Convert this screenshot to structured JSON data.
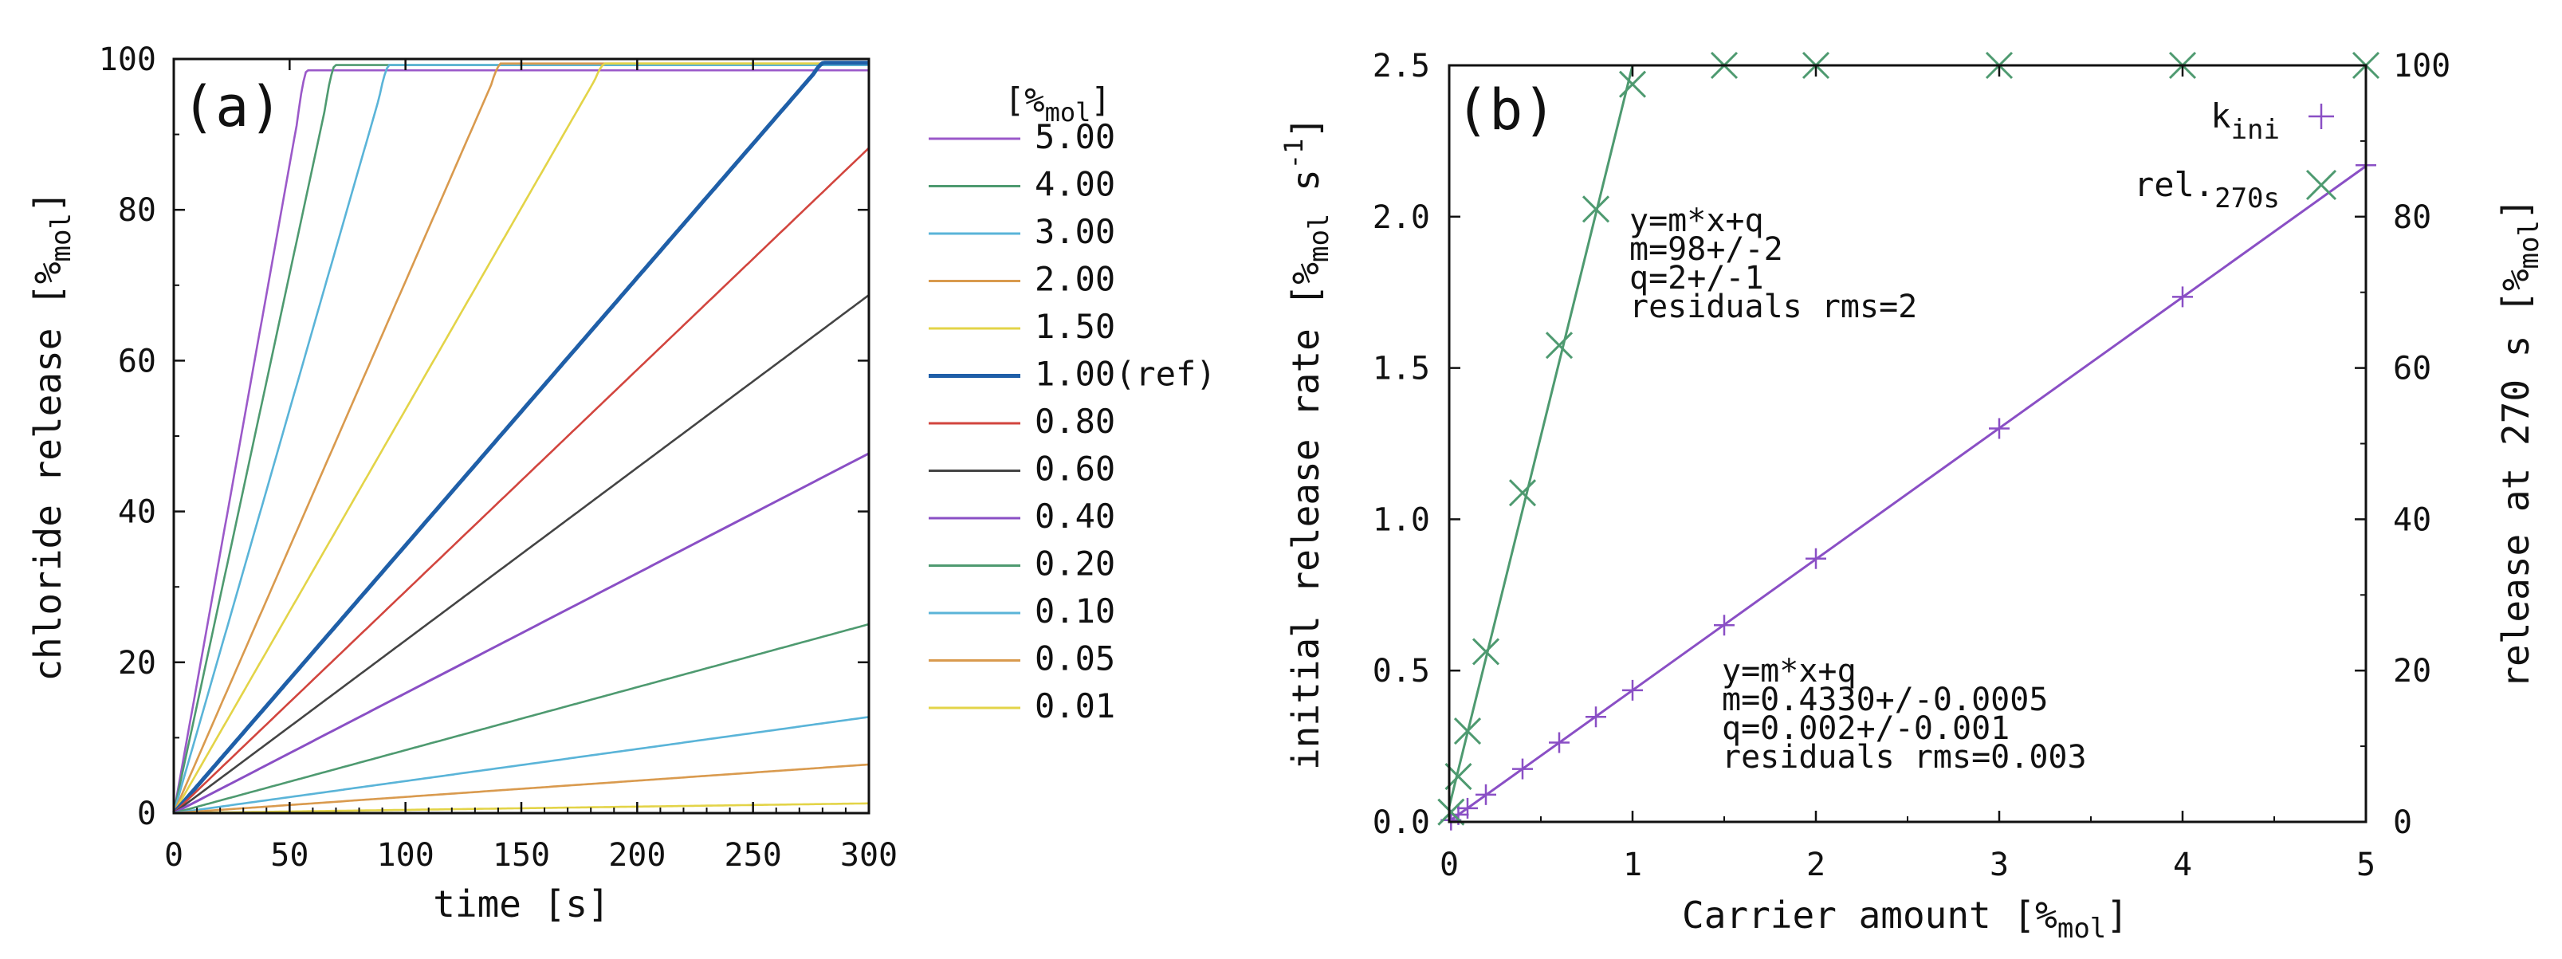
{
  "chart_data": [
    {
      "type": "line",
      "panel_label": "(a)",
      "xlabel": "time [s]",
      "ylabel": "chloride release [%mol]",
      "xlim": [
        0,
        300
      ],
      "ylim": [
        0,
        100
      ],
      "x_ticks": [
        0,
        50,
        100,
        150,
        200,
        250,
        300
      ],
      "y_ticks": [
        0,
        20,
        40,
        60,
        80,
        100
      ],
      "legend_title": "[%mol]",
      "legend_position": "outside-right",
      "series": [
        {
          "name": "5.00",
          "slope": 1.72,
          "plateau": 98.5,
          "color": "#9b59c9",
          "width": 2.6
        },
        {
          "name": "4.00",
          "slope": 1.43,
          "plateau": 99.2,
          "color": "#4e9a70",
          "width": 2.6
        },
        {
          "name": "3.00",
          "slope": 1.07,
          "plateau": 99.2,
          "color": "#5ab4d8",
          "width": 2.6
        },
        {
          "name": "2.00",
          "slope": 0.705,
          "plateau": 99.4,
          "color": "#d99a4e",
          "width": 2.6
        },
        {
          "name": "1.50",
          "slope": 0.535,
          "plateau": 99.4,
          "color": "#e3d448",
          "width": 2.6
        },
        {
          "name": "1.00(ref)",
          "slope": 0.355,
          "plateau": 99.5,
          "color": "#1f5fa8",
          "width": 5
        },
        {
          "name": "0.80",
          "slope": 0.294,
          "plateau": 100,
          "color": "#d2453e",
          "width": 2.6
        },
        {
          "name": "0.60",
          "slope": 0.229,
          "plateau": 100,
          "color": "#444444",
          "width": 2.6
        },
        {
          "name": "0.40",
          "slope": 0.159,
          "plateau": 100,
          "color": "#8a4fc5",
          "width": 3
        },
        {
          "name": "0.20",
          "slope": 0.0835,
          "plateau": 100,
          "color": "#4e9a70",
          "width": 2.6
        },
        {
          "name": "0.10",
          "slope": 0.0425,
          "plateau": 100,
          "color": "#5ab4d8",
          "width": 2.6
        },
        {
          "name": "0.05",
          "slope": 0.0215,
          "plateau": 100,
          "color": "#d99a4e",
          "width": 2.6
        },
        {
          "name": "0.01",
          "slope": 0.0043,
          "plateau": 100,
          "color": "#e3d448",
          "width": 2.6
        }
      ]
    },
    {
      "type": "scatter",
      "panel_label": "(b)",
      "xlabel": "Carrier amount [%mol]",
      "ylabel": "initial release rate [%mol s-1]",
      "y2label": "release at 270 s [%mol]",
      "xlim": [
        0,
        5
      ],
      "ylim": [
        0,
        2.5
      ],
      "y2lim": [
        0,
        100
      ],
      "x_ticks": [
        0,
        1,
        2,
        3,
        4,
        5
      ],
      "y_ticks": [
        "0.0",
        "0.5",
        "1.0",
        "1.5",
        "2.0",
        "2.5"
      ],
      "y2_ticks": [
        0,
        20,
        40,
        60,
        80,
        100
      ],
      "legend_position": "top-right",
      "series": [
        {
          "name": "k",
          "name_sub": "ini",
          "marker": "plus",
          "axis": "left",
          "color": "#8a4fc5",
          "x": [
            0.01,
            0.05,
            0.1,
            0.2,
            0.4,
            0.6,
            0.8,
            1.0,
            1.5,
            2.0,
            3.0,
            4.0,
            5.0
          ],
          "y": [
            0.006,
            0.024,
            0.045,
            0.09,
            0.175,
            0.262,
            0.347,
            0.435,
            0.65,
            0.87,
            1.3,
            1.735,
            2.17
          ],
          "fit": {
            "m": 0.433,
            "q": 0.002,
            "x_range": [
              0,
              5
            ]
          }
        },
        {
          "name": "rel.",
          "name_sub": "270s",
          "marker": "x",
          "axis": "right",
          "color": "#4e9a70",
          "x": [
            0.01,
            0.05,
            0.1,
            0.2,
            0.4,
            0.6,
            0.8,
            1.0,
            1.5,
            2.0,
            3.0,
            4.0,
            5.0
          ],
          "y": [
            1.3,
            6,
            12,
            22.5,
            43.5,
            63,
            81,
            97.5,
            100,
            100,
            100,
            100,
            100
          ],
          "fit": {
            "m": 98,
            "q": 2,
            "x_range": [
              0,
              1.0
            ]
          }
        }
      ],
      "annotations": [
        {
          "id": "rel-fit",
          "lines": [
            "y=m*x+q",
            "m=98+/-2",
            "q=2+/-1",
            "residuals rms=2"
          ]
        },
        {
          "id": "kini-fit",
          "lines": [
            "y=m*x+q",
            "m=0.4330+/-0.0005",
            "q=0.002+/-0.001",
            "residuals rms=0.003"
          ]
        }
      ]
    }
  ]
}
